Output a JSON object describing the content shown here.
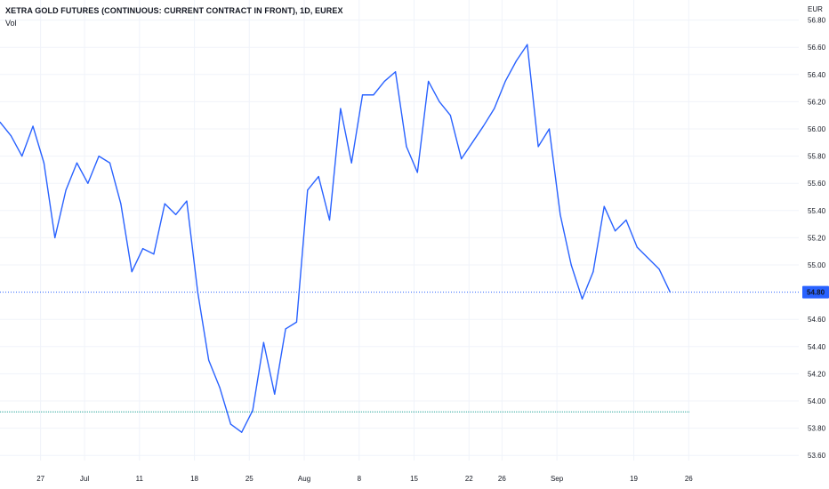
{
  "header": {
    "title": "XETRA GOLD FUTURES (CONTINUOUS: CURRENT CONTRACT IN FRONT), 1D, EUREX",
    "indicator": "Vol",
    "currency": "EUR"
  },
  "colors": {
    "line": "#2962ff",
    "last_price_badge": "#2962ff",
    "volume_line": "#26a69a",
    "grid": "#f0f3fa"
  },
  "chart_data": {
    "type": "line",
    "y_ticks": [
      "56.80",
      "56.60",
      "56.40",
      "56.20",
      "56.00",
      "55.80",
      "55.60",
      "55.40",
      "55.20",
      "55.00",
      "54.60",
      "54.40",
      "54.20",
      "54.00",
      "53.80",
      "53.60"
    ],
    "x_ticks": [
      "27",
      "Jul",
      "11",
      "18",
      "25",
      "Aug",
      "8",
      "15",
      "22",
      "26",
      "Sep",
      "19",
      "26"
    ],
    "x_tick_positions": [
      -1,
      3,
      8,
      13,
      18,
      23,
      28,
      33,
      38,
      41,
      46,
      53,
      58
    ],
    "ylim": [
      53.6,
      56.8
    ],
    "last_price": "54.80",
    "volume_level": 53.92,
    "series": [
      {
        "values": [
          56.05,
          55.95,
          55.8,
          56.02,
          55.75,
          55.2,
          55.55,
          55.75,
          55.6,
          55.8,
          55.75,
          55.45,
          54.95,
          55.12,
          55.08,
          55.45,
          55.37,
          55.47,
          54.8,
          54.3,
          54.1,
          53.83,
          53.77,
          53.93,
          54.43,
          54.05,
          54.53,
          54.58,
          55.55,
          55.65,
          55.33,
          56.15,
          55.75,
          56.25,
          56.25,
          56.35,
          56.42,
          55.87,
          55.68,
          56.35,
          56.2,
          56.1,
          55.78,
          55.9,
          56.02,
          56.15,
          56.35,
          56.5,
          56.62,
          55.87,
          56.0,
          55.37,
          55.0,
          54.75,
          54.95,
          55.43,
          55.25,
          55.33,
          55.13,
          55.05,
          54.97,
          54.8
        ]
      }
    ]
  }
}
